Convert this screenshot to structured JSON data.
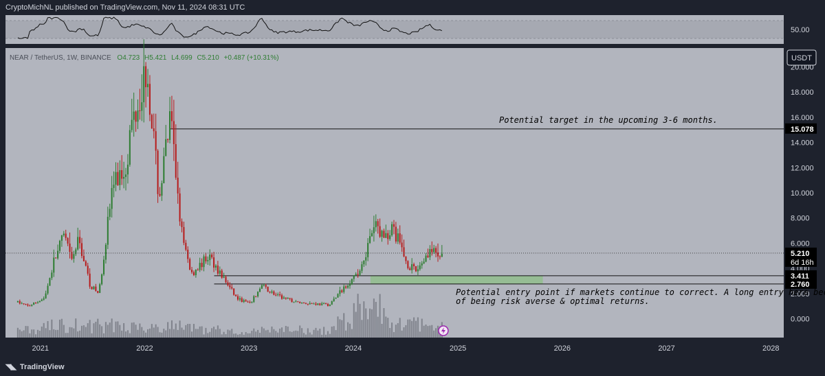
{
  "header": {
    "published": "CryptoMichNL published on TradingView.com, Nov 11, 2024 08:31 UTC"
  },
  "symbol_line": {
    "name": "NEAR / TetherUS, 1W, BINANCE",
    "o_label": "O",
    "o": "4.723",
    "h_label": "H",
    "h": "5.421",
    "l_label": "L",
    "l": "4.699",
    "c_label": "C",
    "c": "5.210",
    "change": "+0.487 (+10.31%)"
  },
  "currency_label": "USDT",
  "rsi_pane": {
    "level_label": "50.00"
  },
  "footer": {
    "brand": "TradingView"
  },
  "colors": {
    "up": "#26a69a",
    "up_body": "#2e7d32",
    "down": "#b71c1c",
    "zone": "#8fbf8a",
    "pane_bg": "#b2b5be",
    "frame": "#1e222d"
  },
  "chart_data": {
    "type": "candlestick",
    "symbol": "NEAR / TetherUS",
    "interval": "1W",
    "y_range": [
      -1.5,
      21.5
    ],
    "y_ticks": [
      "0.000",
      "2.000",
      "4.000",
      "6.000",
      "8.000",
      "10.000",
      "12.000",
      "14.000",
      "16.000",
      "18.000",
      "20.000"
    ],
    "y_tick_values": [
      0,
      2,
      4,
      6,
      8,
      10,
      12,
      14,
      16,
      18,
      20
    ],
    "x_range": [
      "2020-09-01",
      "2028-02-15"
    ],
    "x_ticks": [
      "2021",
      "2022",
      "2023",
      "2024",
      "2025",
      "2026",
      "2027",
      "2028"
    ],
    "x_tick_dates": [
      "2021-01-01",
      "2022-01-01",
      "2023-01-01",
      "2024-01-01",
      "2025-01-01",
      "2026-01-01",
      "2027-01-01",
      "2028-01-01"
    ],
    "price_path": [
      [
        "2020-10-14",
        1.3
      ],
      [
        "2020-11-20",
        1.0
      ],
      [
        "2021-01-15",
        1.6
      ],
      [
        "2021-02-20",
        4.8
      ],
      [
        "2021-03-25",
        6.6
      ],
      [
        "2021-04-20",
        4.5
      ],
      [
        "2021-05-15",
        6.3
      ],
      [
        "2021-06-25",
        2.6
      ],
      [
        "2021-07-25",
        2.0
      ],
      [
        "2021-09-10",
        10.5
      ],
      [
        "2021-10-25",
        12.0
      ],
      [
        "2021-11-20",
        16.0
      ],
      [
        "2022-01-10",
        20.0
      ],
      [
        "2022-02-20",
        9.5
      ],
      [
        "2022-04-01",
        15.8
      ],
      [
        "2022-05-15",
        6.0
      ],
      [
        "2022-06-15",
        3.6
      ],
      [
        "2022-08-15",
        5.0
      ],
      [
        "2022-10-01",
        3.3
      ],
      [
        "2022-11-20",
        1.6
      ],
      [
        "2023-01-05",
        1.2
      ],
      [
        "2023-02-15",
        2.6
      ],
      [
        "2023-04-10",
        1.8
      ],
      [
        "2023-06-15",
        1.3
      ],
      [
        "2023-10-10",
        1.1
      ],
      [
        "2023-12-10",
        2.8
      ],
      [
        "2024-01-15",
        3.4
      ],
      [
        "2024-03-20",
        7.5
      ],
      [
        "2024-04-15",
        6.5
      ],
      [
        "2024-05-20",
        7.2
      ],
      [
        "2024-07-05",
        4.5
      ],
      [
        "2024-08-05",
        3.7
      ],
      [
        "2024-09-25",
        5.5
      ],
      [
        "2024-10-25",
        4.8
      ],
      [
        "2024-11-11",
        5.21
      ]
    ],
    "volume_relative": "low in 2021-2023, spike early 2024, moderate late 2024",
    "last_price": 5.21,
    "last_price_label": "5.210",
    "countdown_label": "6d 16h",
    "levels": [
      {
        "value": 15.078,
        "label": "15.078",
        "from": "2022-04-01"
      },
      {
        "value": 3.411,
        "label": "3.411",
        "from": "2022-09-01"
      },
      {
        "value": 2.76,
        "label": "2.760",
        "from": "2022-09-01"
      }
    ],
    "zone": {
      "from": "2024-03-01",
      "to": "2025-10-25",
      "low": 2.76,
      "high": 3.411
    },
    "annotations": [
      {
        "text": "Potential target in the upcoming 3-6 months.",
        "anchor": "target"
      },
      {
        "text": "Potential entry point if markets continue to correct. A long entry here becomes",
        "anchor": "entry1"
      },
      {
        "text": "of being risk averse & optimal returns.",
        "anchor": "entry2"
      }
    ]
  }
}
